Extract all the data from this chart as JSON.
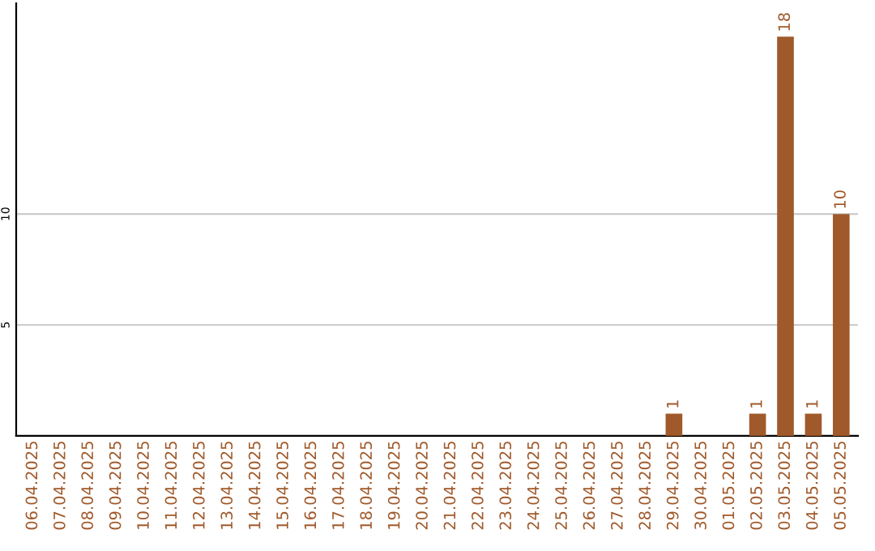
{
  "chart_data": {
    "type": "bar",
    "categories": [
      "06.04.2025",
      "07.04.2025",
      "08.04.2025",
      "09.04.2025",
      "10.04.2025",
      "11.04.2025",
      "12.04.2025",
      "13.04.2025",
      "14.04.2025",
      "15.04.2025",
      "16.04.2025",
      "17.04.2025",
      "18.04.2025",
      "19.04.2025",
      "20.04.2025",
      "21.04.2025",
      "22.04.2025",
      "23.04.2025",
      "24.04.2025",
      "25.04.2025",
      "26.04.2025",
      "27.04.2025",
      "28.04.2025",
      "29.04.2025",
      "30.04.2025",
      "01.05.2025",
      "02.05.2025",
      "03.05.2025",
      "04.05.2025",
      "05.05.2025"
    ],
    "values": [
      0,
      0,
      0,
      0,
      0,
      0,
      0,
      0,
      0,
      0,
      0,
      0,
      0,
      0,
      0,
      0,
      0,
      0,
      0,
      0,
      0,
      0,
      0,
      1,
      0,
      0,
      1,
      18,
      1,
      10
    ],
    "value_labels": [
      null,
      null,
      null,
      null,
      null,
      null,
      null,
      null,
      null,
      null,
      null,
      null,
      null,
      null,
      null,
      null,
      null,
      null,
      null,
      null,
      null,
      null,
      null,
      "1",
      null,
      null,
      "1",
      "18",
      "1",
      "10"
    ],
    "color": "#a0592a",
    "ylim": [
      0,
      19.5
    ],
    "yticks": [
      5,
      10
    ],
    "grid": "y"
  }
}
